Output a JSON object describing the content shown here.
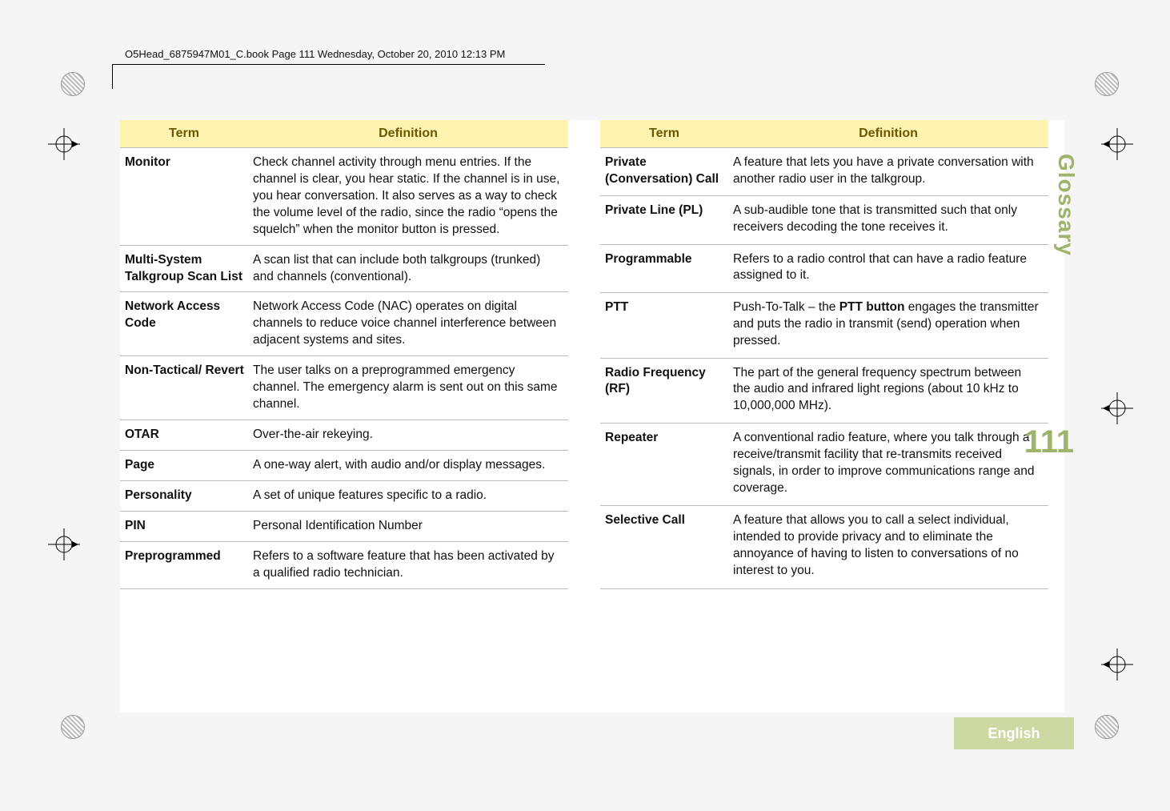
{
  "colors": {
    "header_bg": "#fff3b0",
    "header_text": "#6b5700",
    "row_border": "#bcbcbc",
    "side_label": "#9fb36b",
    "page_number": "#9fb36b",
    "footer_bg": "#cdd9a3",
    "footer_text": "#ffffff"
  },
  "top_rule_text": "O5Head_6875947M01_C.book  Page 111  Wednesday, October 20, 2010  12:13 PM",
  "side_label": "Glossary",
  "page_number": "111",
  "footer_text": "English",
  "headers": {
    "term": "Term",
    "definition": "Definition"
  },
  "left_table": [
    {
      "term": "Monitor",
      "def": "Check channel activity through menu entries. If the channel is clear, you hear static. If the channel is in use, you hear conversation. It also serves as a way to check the volume level of the radio, since the radio “opens the squelch” when the monitor button is pressed."
    },
    {
      "term": "Multi-System Talkgroup Scan List",
      "def": "A scan list that can include both talkgroups (trunked) and channels (conventional)."
    },
    {
      "term": "Network Access Code",
      "def": "Network Access Code (NAC) operates on digital channels to reduce voice channel interference between adjacent systems and sites."
    },
    {
      "term": "Non-Tactical/ Revert",
      "def": "The user talks on a preprogrammed emergency channel. The emergency alarm is sent out on this same channel."
    },
    {
      "term": "OTAR",
      "def": "Over-the-air rekeying."
    },
    {
      "term": "Page",
      "def": "A one-way alert, with audio and/or display messages."
    },
    {
      "term": "Personality",
      "def": "A set of unique features specific to a radio."
    },
    {
      "term": "PIN",
      "def": "Personal Identification Number"
    },
    {
      "term": "Preprogrammed",
      "def": "Refers to a software feature that has been activated by a qualified radio technician."
    }
  ],
  "right_table": [
    {
      "term": "Private (Conversation) Call",
      "def": "A feature that lets you have a private conversation with another radio user in the talkgroup."
    },
    {
      "term": "Private Line (PL)",
      "def": "A sub-audible tone that is transmitted such that only receivers decoding the tone receives it."
    },
    {
      "term": "Programmable",
      "def": "Refers to a radio control that can have a radio feature assigned to it."
    },
    {
      "term": "PTT",
      "def_html": "Push-To-Talk – the <span class=\"ptt-bold\">PTT button</span> engages the transmitter and puts the radio in transmit (send) operation when pressed."
    },
    {
      "term": "Radio Frequency (RF)",
      "def": "The part of the general frequency spectrum between the audio and infrared light regions (about 10 kHz to 10,000,000 MHz)."
    },
    {
      "term": "Repeater",
      "def": "A conventional radio feature, where you talk through a receive/transmit facility that re-transmits received signals, in order to improve communications range and coverage."
    },
    {
      "term": "Selective Call",
      "def": "A feature that allows you to call a select individual, intended to provide privacy and to eliminate the annoyance of having to listen to conversations of no interest to you."
    }
  ]
}
